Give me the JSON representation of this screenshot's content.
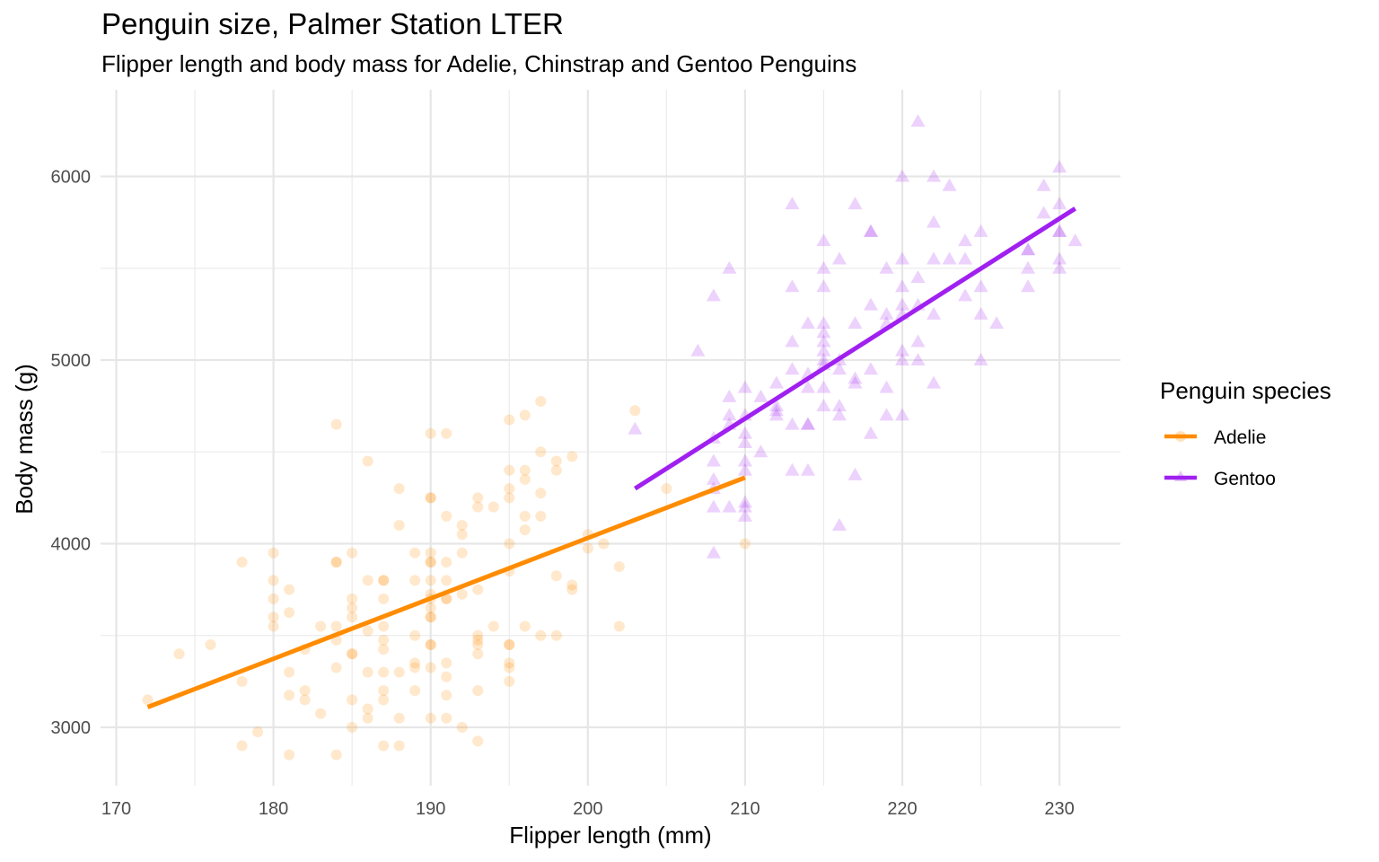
{
  "chart_data": {
    "type": "scatter",
    "title": "Penguin size, Palmer Station LTER",
    "subtitle": "Flipper length and body mass for Adelie, Chinstrap and Gentoo Penguins",
    "xlabel": "Flipper length (mm)",
    "ylabel": "Body mass (g)",
    "xlim": [
      168,
      234
    ],
    "ylim": [
      2700,
      6450
    ],
    "x_ticks": [
      170,
      180,
      190,
      200,
      210,
      220,
      230
    ],
    "y_ticks": [
      3000,
      4000,
      5000,
      6000
    ],
    "x_tick_labels": [
      "170",
      "180",
      "190",
      "200",
      "210",
      "220",
      "230"
    ],
    "y_tick_labels": [
      "3000",
      "4000",
      "5000",
      "6000"
    ],
    "grid": true,
    "legend": {
      "title": "Penguin species",
      "position": "right",
      "items": [
        {
          "label": "Adelie",
          "color": "#ff8c00",
          "marker": "circle"
        },
        {
          "label": "Gentoo",
          "color": "#a020f0",
          "marker": "triangle"
        }
      ]
    },
    "series": [
      {
        "name": "Adelie",
        "color": "#ff8c00",
        "marker": "circle",
        "fit_line": [
          [
            172,
            3110
          ],
          [
            210,
            4360
          ]
        ],
        "points": [
          [
            172,
            3150
          ],
          [
            174,
            3400
          ],
          [
            176,
            3450
          ],
          [
            178,
            3900
          ],
          [
            178,
            3250
          ],
          [
            178,
            2900
          ],
          [
            179,
            2975
          ],
          [
            180,
            3950
          ],
          [
            180,
            3800
          ],
          [
            180,
            3700
          ],
          [
            180,
            3600
          ],
          [
            180,
            3550
          ],
          [
            181,
            3750
          ],
          [
            181,
            3625
          ],
          [
            181,
            3300
          ],
          [
            181,
            3175
          ],
          [
            181,
            2850
          ],
          [
            182,
            3425
          ],
          [
            182,
            3200
          ],
          [
            182,
            3150
          ],
          [
            183,
            3550
          ],
          [
            183,
            3075
          ],
          [
            184,
            4650
          ],
          [
            184,
            3900
          ],
          [
            184,
            3900
          ],
          [
            184,
            3550
          ],
          [
            184,
            3475
          ],
          [
            184,
            3325
          ],
          [
            184,
            2850
          ],
          [
            185,
            3950
          ],
          [
            185,
            3700
          ],
          [
            185,
            3650
          ],
          [
            185,
            3600
          ],
          [
            185,
            3400
          ],
          [
            185,
            3400
          ],
          [
            185,
            3150
          ],
          [
            185,
            3000
          ],
          [
            186,
            4450
          ],
          [
            186,
            3800
          ],
          [
            186,
            3525
          ],
          [
            186,
            3300
          ],
          [
            186,
            3100
          ],
          [
            186,
            3050
          ],
          [
            187,
            3800
          ],
          [
            187,
            3800
          ],
          [
            187,
            3700
          ],
          [
            187,
            3550
          ],
          [
            187,
            3475
          ],
          [
            187,
            3425
          ],
          [
            187,
            3300
          ],
          [
            187,
            3200
          ],
          [
            187,
            3150
          ],
          [
            187,
            2900
          ],
          [
            188,
            4300
          ],
          [
            188,
            4100
          ],
          [
            188,
            3300
          ],
          [
            188,
            3050
          ],
          [
            188,
            2900
          ],
          [
            189,
            3950
          ],
          [
            189,
            3800
          ],
          [
            189,
            3500
          ],
          [
            189,
            3350
          ],
          [
            189,
            3325
          ],
          [
            189,
            3200
          ],
          [
            190,
            4600
          ],
          [
            190,
            4250
          ],
          [
            190,
            4250
          ],
          [
            190,
            3950
          ],
          [
            190,
            3900
          ],
          [
            190,
            3900
          ],
          [
            190,
            3800
          ],
          [
            190,
            3725
          ],
          [
            190,
            3700
          ],
          [
            190,
            3650
          ],
          [
            190,
            3600
          ],
          [
            190,
            3600
          ],
          [
            190,
            3450
          ],
          [
            190,
            3450
          ],
          [
            190,
            3325
          ],
          [
            190,
            3050
          ],
          [
            191,
            4600
          ],
          [
            191,
            4150
          ],
          [
            191,
            3900
          ],
          [
            191,
            3800
          ],
          [
            191,
            3700
          ],
          [
            191,
            3700
          ],
          [
            191,
            3350
          ],
          [
            191,
            3275
          ],
          [
            191,
            3175
          ],
          [
            191,
            3050
          ],
          [
            192,
            4100
          ],
          [
            192,
            4050
          ],
          [
            192,
            3950
          ],
          [
            192,
            3725
          ],
          [
            192,
            3000
          ],
          [
            193,
            4250
          ],
          [
            193,
            4200
          ],
          [
            193,
            3750
          ],
          [
            193,
            3500
          ],
          [
            193,
            3475
          ],
          [
            193,
            3450
          ],
          [
            193,
            3400
          ],
          [
            193,
            3200
          ],
          [
            193,
            2925
          ],
          [
            194,
            4200
          ],
          [
            194,
            3550
          ],
          [
            195,
            4675
          ],
          [
            195,
            4400
          ],
          [
            195,
            4300
          ],
          [
            195,
            4250
          ],
          [
            195,
            4000
          ],
          [
            195,
            3850
          ],
          [
            195,
            3450
          ],
          [
            195,
            3450
          ],
          [
            195,
            3350
          ],
          [
            195,
            3325
          ],
          [
            195,
            3250
          ],
          [
            196,
            4700
          ],
          [
            196,
            4400
          ],
          [
            196,
            4350
          ],
          [
            196,
            4150
          ],
          [
            196,
            4075
          ],
          [
            196,
            3550
          ],
          [
            197,
            4775
          ],
          [
            197,
            4500
          ],
          [
            197,
            4275
          ],
          [
            197,
            4150
          ],
          [
            197,
            3500
          ],
          [
            198,
            4450
          ],
          [
            198,
            4400
          ],
          [
            198,
            3825
          ],
          [
            198,
            3500
          ],
          [
            199,
            4475
          ],
          [
            199,
            3775
          ],
          [
            199,
            3750
          ],
          [
            200,
            4050
          ],
          [
            200,
            3975
          ],
          [
            201,
            4000
          ],
          [
            202,
            3875
          ],
          [
            202,
            3550
          ],
          [
            203,
            4725
          ],
          [
            205,
            4300
          ],
          [
            210,
            4000
          ]
        ]
      },
      {
        "name": "Gentoo",
        "color": "#a020f0",
        "marker": "triangle",
        "fit_line": [
          [
            203,
            4300
          ],
          [
            231,
            5825
          ]
        ],
        "points": [
          [
            203,
            4625
          ],
          [
            207,
            5050
          ],
          [
            208,
            5350
          ],
          [
            208,
            4575
          ],
          [
            208,
            4450
          ],
          [
            208,
            4350
          ],
          [
            208,
            4300
          ],
          [
            208,
            4200
          ],
          [
            208,
            3950
          ],
          [
            209,
            5500
          ],
          [
            209,
            4800
          ],
          [
            209,
            4700
          ],
          [
            209,
            4650
          ],
          [
            209,
            4200
          ],
          [
            210,
            4850
          ],
          [
            210,
            4700
          ],
          [
            210,
            4600
          ],
          [
            210,
            4550
          ],
          [
            210,
            4450
          ],
          [
            210,
            4400
          ],
          [
            210,
            4225
          ],
          [
            210,
            4200
          ],
          [
            210,
            4150
          ],
          [
            211,
            4800
          ],
          [
            211,
            4500
          ],
          [
            212,
            4875
          ],
          [
            212,
            4750
          ],
          [
            212,
            4725
          ],
          [
            212,
            4700
          ],
          [
            213,
            5850
          ],
          [
            213,
            5400
          ],
          [
            213,
            5100
          ],
          [
            213,
            4950
          ],
          [
            213,
            4650
          ],
          [
            213,
            4400
          ],
          [
            214,
            5200
          ],
          [
            214,
            4925
          ],
          [
            214,
            4850
          ],
          [
            214,
            4650
          ],
          [
            214,
            4650
          ],
          [
            214,
            4400
          ],
          [
            215,
            5650
          ],
          [
            215,
            5500
          ],
          [
            215,
            5400
          ],
          [
            215,
            5200
          ],
          [
            215,
            5150
          ],
          [
            215,
            5100
          ],
          [
            215,
            5050
          ],
          [
            215,
            5000
          ],
          [
            215,
            4975
          ],
          [
            215,
            4850
          ],
          [
            215,
            4750
          ],
          [
            216,
            5550
          ],
          [
            216,
            5000
          ],
          [
            216,
            4950
          ],
          [
            216,
            4750
          ],
          [
            216,
            4700
          ],
          [
            216,
            4100
          ],
          [
            217,
            5850
          ],
          [
            217,
            5200
          ],
          [
            217,
            4900
          ],
          [
            217,
            4875
          ],
          [
            217,
            4375
          ],
          [
            218,
            5700
          ],
          [
            218,
            5700
          ],
          [
            218,
            5300
          ],
          [
            218,
            4950
          ],
          [
            218,
            4600
          ],
          [
            219,
            5500
          ],
          [
            219,
            5250
          ],
          [
            219,
            5200
          ],
          [
            219,
            4850
          ],
          [
            219,
            4700
          ],
          [
            220,
            6000
          ],
          [
            220,
            5550
          ],
          [
            220,
            5400
          ],
          [
            220,
            5300
          ],
          [
            220,
            5250
          ],
          [
            220,
            5050
          ],
          [
            220,
            5000
          ],
          [
            220,
            4700
          ],
          [
            221,
            6300
          ],
          [
            221,
            5450
          ],
          [
            221,
            5300
          ],
          [
            221,
            5100
          ],
          [
            221,
            5000
          ],
          [
            222,
            6000
          ],
          [
            222,
            5750
          ],
          [
            222,
            5550
          ],
          [
            222,
            5250
          ],
          [
            222,
            4875
          ],
          [
            223,
            5950
          ],
          [
            223,
            5550
          ],
          [
            224,
            5650
          ],
          [
            224,
            5550
          ],
          [
            224,
            5350
          ],
          [
            225,
            5700
          ],
          [
            225,
            5400
          ],
          [
            225,
            5250
          ],
          [
            225,
            5000
          ],
          [
            226,
            5200
          ],
          [
            228,
            5600
          ],
          [
            228,
            5600
          ],
          [
            228,
            5500
          ],
          [
            228,
            5400
          ],
          [
            229,
            5950
          ],
          [
            229,
            5800
          ],
          [
            230,
            6050
          ],
          [
            230,
            5850
          ],
          [
            230,
            5700
          ],
          [
            230,
            5700
          ],
          [
            230,
            5550
          ],
          [
            230,
            5500
          ],
          [
            231,
            5650
          ]
        ]
      }
    ]
  }
}
